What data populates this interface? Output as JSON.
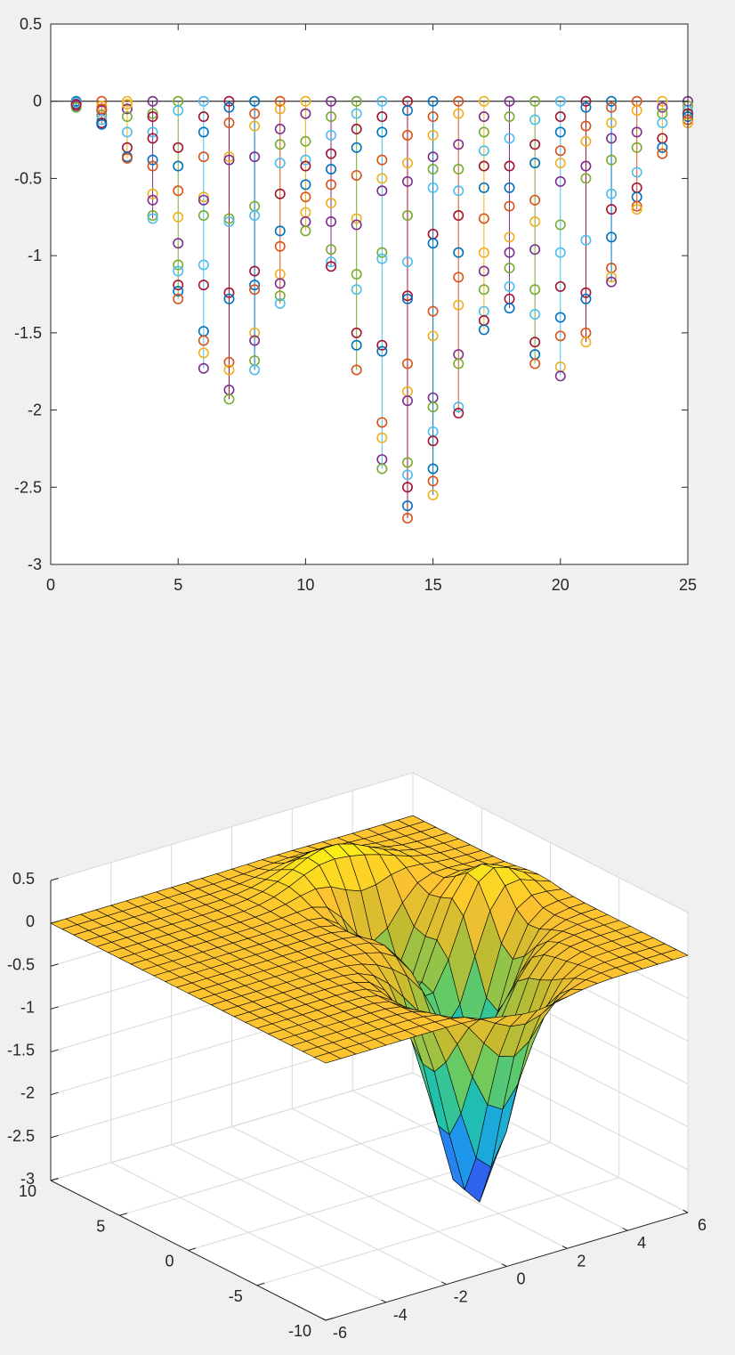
{
  "figure": {
    "background": "#f0f0f0",
    "axes_color": "#262626"
  },
  "chart_data": [
    {
      "type": "scatter",
      "title": "",
      "xlabel": "",
      "ylabel": "",
      "xlim": [
        0,
        25
      ],
      "ylim": [
        -3,
        0.5
      ],
      "xticks": [
        0,
        5,
        10,
        15,
        20,
        25
      ],
      "yticks": [
        0.5,
        0,
        -0.5,
        -1,
        -1.5,
        -2,
        -2.5,
        -3
      ],
      "grid": false,
      "marker": "o",
      "stem_lines": true,
      "color_order": [
        "#0072BD",
        "#D95319",
        "#EDB120",
        "#7E2F8E",
        "#77AC30",
        "#4DBEEE",
        "#A2142F"
      ],
      "baseline_y": 0,
      "columns": [
        {
          "x": 1,
          "values": [
            0,
            -0.01,
            -0.02,
            -0.03,
            -0.04,
            -0.01,
            -0.02
          ]
        },
        {
          "x": 2,
          "values": [
            0,
            -0.03,
            -0.06,
            -0.09,
            -0.12,
            -0.14,
            -0.15,
            -0.05
          ]
        },
        {
          "x": 3,
          "values": [
            0,
            -0.05,
            -0.1,
            -0.2,
            -0.3,
            -0.36,
            -0.37,
            -0.02
          ]
        },
        {
          "x": 4,
          "values": [
            0,
            -0.08,
            -0.2,
            -0.24,
            -0.38,
            -0.42,
            -0.6,
            -0.64,
            -0.74,
            -0.76,
            -0.1
          ]
        },
        {
          "x": 5,
          "values": [
            0,
            -0.06,
            -0.3,
            -0.42,
            -0.58,
            -0.75,
            -0.92,
            -1.06,
            -1.1,
            -1.19,
            -1.23,
            -1.28
          ]
        },
        {
          "x": 6,
          "values": [
            0,
            -0.1,
            -0.2,
            -0.36,
            -0.62,
            -0.64,
            -0.74,
            -1.06,
            -1.19,
            -1.49,
            -1.55,
            -1.63,
            -1.73
          ]
        },
        {
          "x": 7,
          "values": [
            0,
            -0.04,
            -0.14,
            -0.36,
            -0.38,
            -0.76,
            -0.78,
            -1.24,
            -1.28,
            -1.69,
            -1.74,
            -1.87,
            -1.93
          ]
        },
        {
          "x": 8,
          "values": [
            0,
            -0.08,
            -0.16,
            -0.36,
            -0.68,
            -0.74,
            -1.1,
            -1.19,
            -1.22,
            -1.5,
            -1.55,
            -1.68,
            -1.74
          ]
        },
        {
          "x": 9,
          "values": [
            0,
            -0.05,
            -0.18,
            -0.28,
            -0.4,
            -0.6,
            -0.84,
            -0.94,
            -1.12,
            -1.18,
            -1.26,
            -1.31
          ]
        },
        {
          "x": 10,
          "values": [
            0,
            -0.08,
            -0.26,
            -0.38,
            -0.42,
            -0.54,
            -0.62,
            -0.72,
            -0.78,
            -0.84
          ]
        },
        {
          "x": 11,
          "values": [
            0,
            -0.1,
            -0.22,
            -0.34,
            -0.44,
            -0.54,
            -0.66,
            -0.78,
            -0.96,
            -1.04,
            -1.07
          ]
        },
        {
          "x": 12,
          "values": [
            0,
            -0.08,
            -0.18,
            -0.3,
            -0.48,
            -0.76,
            -0.8,
            -1.12,
            -1.22,
            -1.5,
            -1.58,
            -1.74
          ]
        },
        {
          "x": 13,
          "values": [
            0,
            -0.1,
            -0.2,
            -0.38,
            -0.5,
            -0.58,
            -0.98,
            -1.02,
            -1.58,
            -1.62,
            -2.08,
            -2.18,
            -2.32,
            -2.38
          ]
        },
        {
          "x": 14,
          "values": [
            0,
            -0.06,
            -0.22,
            -0.4,
            -0.52,
            -0.74,
            -1.04,
            -1.26,
            -1.28,
            -1.7,
            -1.88,
            -1.94,
            -2.34,
            -2.42,
            -2.5,
            -2.62,
            -2.7
          ]
        },
        {
          "x": 15,
          "values": [
            0,
            -0.1,
            -0.22,
            -0.36,
            -0.44,
            -0.56,
            -0.86,
            -0.92,
            -1.36,
            -1.52,
            -1.92,
            -1.98,
            -2.14,
            -2.2,
            -2.38,
            -2.46,
            -2.55
          ]
        },
        {
          "x": 16,
          "values": [
            0,
            -0.08,
            -0.28,
            -0.44,
            -0.58,
            -0.74,
            -0.98,
            -1.14,
            -1.32,
            -1.64,
            -1.7,
            -1.98,
            -2.02
          ]
        },
        {
          "x": 17,
          "values": [
            0,
            -0.1,
            -0.2,
            -0.32,
            -0.42,
            -0.56,
            -0.76,
            -0.98,
            -1.1,
            -1.22,
            -1.36,
            -1.42,
            -1.48
          ]
        },
        {
          "x": 18,
          "values": [
            0,
            -0.1,
            -0.24,
            -0.42,
            -0.56,
            -0.68,
            -0.88,
            -0.98,
            -1.08,
            -1.2,
            -1.28,
            -1.34
          ]
        },
        {
          "x": 19,
          "values": [
            0,
            -0.12,
            -0.28,
            -0.4,
            -0.64,
            -0.78,
            -0.96,
            -1.22,
            -1.38,
            -1.56,
            -1.64,
            -1.7
          ]
        },
        {
          "x": 20,
          "values": [
            0,
            -0.1,
            -0.2,
            -0.32,
            -0.4,
            -0.52,
            -0.8,
            -0.98,
            -1.2,
            -1.4,
            -1.52,
            -1.72,
            -1.78
          ]
        },
        {
          "x": 21,
          "values": [
            0,
            -0.04,
            -0.16,
            -0.26,
            -0.42,
            -0.5,
            -0.9,
            -1.24,
            -1.28,
            -1.5,
            -1.56
          ]
        },
        {
          "x": 22,
          "values": [
            0,
            -0.04,
            -0.14,
            -0.24,
            -0.38,
            -0.6,
            -0.7,
            -0.88,
            -1.08,
            -1.14,
            -1.17
          ]
        },
        {
          "x": 23,
          "values": [
            0,
            -0.06,
            -0.2,
            -0.3,
            -0.46,
            -0.56,
            -0.62,
            -0.68,
            -0.7
          ]
        },
        {
          "x": 24,
          "values": [
            0,
            -0.04,
            -0.08,
            -0.14,
            -0.24,
            -0.3,
            -0.34
          ]
        },
        {
          "x": 25,
          "values": [
            0,
            -0.03,
            -0.06,
            -0.08,
            -0.1,
            -0.12,
            -0.14
          ]
        }
      ]
    },
    {
      "type": "surface",
      "title": "",
      "xlim": [
        -6,
        6
      ],
      "ylim": [
        -10,
        10
      ],
      "zlim": [
        -3,
        0.5
      ],
      "xticks": [
        -6,
        -4,
        -2,
        0,
        2,
        4,
        6
      ],
      "yticks": [
        -10,
        -5,
        0,
        5,
        10
      ],
      "zticks": [
        0.5,
        0,
        -0.5,
        -1,
        -1.5,
        -2,
        -2.5,
        -3
      ],
      "grid": true,
      "colormap": [
        "#3e26a8",
        "#2e67f4",
        "#1aa3e8",
        "#21c1a9",
        "#6ccb5f",
        "#c4ba2f",
        "#fec231",
        "#f9fb0e"
      ],
      "grid_points": 25,
      "wells": [
        {
          "x": 0.9,
          "y": -5.5,
          "depth": 2.75,
          "sx": 1.0,
          "sy": 1.8
        },
        {
          "x": 2.7,
          "y": -1.2,
          "depth": 1.75,
          "sx": 0.9,
          "sy": 1.5
        },
        {
          "x": 2.0,
          "y": 2.8,
          "depth": 1.2,
          "sx": 0.8,
          "sy": 1.5
        }
      ],
      "bumps": [
        {
          "x": 1.8,
          "y": 6.0,
          "height": 0.45,
          "sx": 1.2,
          "sy": 1.5
        },
        {
          "x": 4.0,
          "y": 0.8,
          "height": 0.45,
          "sx": 1.0,
          "sy": 1.3
        }
      ]
    }
  ]
}
